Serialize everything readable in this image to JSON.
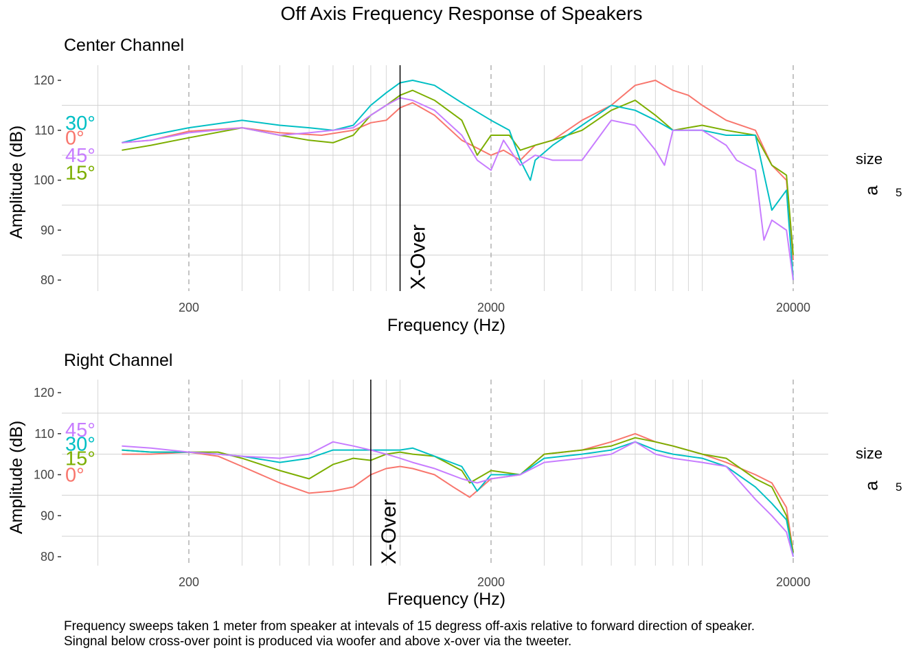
{
  "title": "Off Axis Frequency Response of Speakers",
  "caption": [
    "Frequency sweeps taken 1 meter from speaker at intevals of 15 degress off-axis relative to forward direction of speaker.",
    "Singnal below cross-over point is produced via woofer and above x-over via the tweeter."
  ],
  "legend": {
    "title": "size",
    "key": "a",
    "label": "5"
  },
  "colors": {
    "0°": "#F8766D",
    "15°": "#7CAE00",
    "30°": "#00BFC4",
    "45°": "#C77CFF"
  },
  "chart_data": [
    {
      "type": "line",
      "subtitle": "Center Channel",
      "xlabel": "Frequency (Hz)",
      "ylabel": "Amplitude (dB)",
      "x_scale": "log",
      "xlim": [
        100,
        30000
      ],
      "ylim": [
        78,
        123
      ],
      "x_ticks": [
        200,
        2000,
        20000
      ],
      "x_tick_labels": [
        "200",
        "2000",
        "20000"
      ],
      "y_ticks": [
        80,
        90,
        100,
        110,
        120
      ],
      "y_tick_labels": [
        "80",
        "90",
        "100",
        "110",
        "120"
      ],
      "grid": true,
      "crossover": {
        "x": 1000,
        "label": "X-Over"
      },
      "series_labels": [
        {
          "name": "30°",
          "y": 111.5
        },
        {
          "name": "0°",
          "y": 108.5
        },
        {
          "name": "45°",
          "y": 105
        },
        {
          "name": "15°",
          "y": 101.5
        }
      ],
      "series": [
        {
          "name": "0°",
          "color": "#F8766D",
          "points": [
            [
              120,
              107.5
            ],
            [
              150,
              108
            ],
            [
              200,
              109.8
            ],
            [
              300,
              110.5
            ],
            [
              400,
              109.5
            ],
            [
              550,
              109
            ],
            [
              700,
              110
            ],
            [
              800,
              111.5
            ],
            [
              900,
              112
            ],
            [
              1000,
              114.5
            ],
            [
              1100,
              115.5
            ],
            [
              1300,
              113
            ],
            [
              1600,
              108
            ],
            [
              2000,
              105
            ],
            [
              2200,
              106
            ],
            [
              2500,
              104
            ],
            [
              2800,
              107
            ],
            [
              3200,
              108
            ],
            [
              4000,
              112
            ],
            [
              5000,
              115
            ],
            [
              6000,
              119
            ],
            [
              7000,
              120
            ],
            [
              8000,
              118
            ],
            [
              9000,
              117
            ],
            [
              10000,
              115
            ],
            [
              12000,
              112
            ],
            [
              15000,
              110
            ],
            [
              17000,
              103
            ],
            [
              19000,
              100
            ],
            [
              20000,
              84
            ]
          ]
        },
        {
          "name": "15°",
          "color": "#7CAE00",
          "points": [
            [
              120,
              106
            ],
            [
              150,
              107
            ],
            [
              200,
              108.5
            ],
            [
              300,
              110.5
            ],
            [
              400,
              109
            ],
            [
              500,
              108
            ],
            [
              600,
              107.5
            ],
            [
              700,
              109
            ],
            [
              800,
              113
            ],
            [
              900,
              115
            ],
            [
              1000,
              117
            ],
            [
              1100,
              118
            ],
            [
              1300,
              116
            ],
            [
              1600,
              112
            ],
            [
              1800,
              105
            ],
            [
              2000,
              109
            ],
            [
              2300,
              109
            ],
            [
              2500,
              106
            ],
            [
              2800,
              107
            ],
            [
              3200,
              108
            ],
            [
              4000,
              110
            ],
            [
              5000,
              114
            ],
            [
              6000,
              116
            ],
            [
              7000,
              113
            ],
            [
              8000,
              110
            ],
            [
              10000,
              111
            ],
            [
              12000,
              110
            ],
            [
              15000,
              109
            ],
            [
              17000,
              103
            ],
            [
              19000,
              101
            ],
            [
              20000,
              85
            ]
          ]
        },
        {
          "name": "30°",
          "color": "#00BFC4",
          "points": [
            [
              120,
              107.5
            ],
            [
              150,
              109
            ],
            [
              200,
              110.5
            ],
            [
              300,
              112
            ],
            [
              400,
              111
            ],
            [
              500,
              110.5
            ],
            [
              600,
              110
            ],
            [
              700,
              111
            ],
            [
              800,
              115
            ],
            [
              900,
              117.5
            ],
            [
              1000,
              119.5
            ],
            [
              1100,
              120
            ],
            [
              1300,
              119
            ],
            [
              1600,
              115.5
            ],
            [
              2000,
              112
            ],
            [
              2300,
              110
            ],
            [
              2500,
              104
            ],
            [
              2700,
              100
            ],
            [
              2800,
              104
            ],
            [
              3200,
              107
            ],
            [
              4000,
              111
            ],
            [
              5000,
              115
            ],
            [
              6000,
              114
            ],
            [
              7000,
              112
            ],
            [
              8000,
              110
            ],
            [
              10000,
              110
            ],
            [
              12000,
              109
            ],
            [
              15000,
              109
            ],
            [
              17000,
              94
            ],
            [
              19000,
              98
            ],
            [
              20000,
              80
            ]
          ]
        },
        {
          "name": "45°",
          "color": "#C77CFF",
          "points": [
            [
              120,
              107.5
            ],
            [
              150,
              108
            ],
            [
              200,
              109.5
            ],
            [
              300,
              110.5
            ],
            [
              400,
              109
            ],
            [
              500,
              109.5
            ],
            [
              600,
              110
            ],
            [
              700,
              110.5
            ],
            [
              800,
              113
            ],
            [
              900,
              115
            ],
            [
              1000,
              116.5
            ],
            [
              1100,
              116
            ],
            [
              1300,
              114
            ],
            [
              1600,
              109
            ],
            [
              1800,
              104
            ],
            [
              2000,
              102
            ],
            [
              2200,
              108
            ],
            [
              2500,
              103
            ],
            [
              2800,
              105
            ],
            [
              3200,
              104
            ],
            [
              4000,
              104
            ],
            [
              5000,
              112
            ],
            [
              6000,
              111
            ],
            [
              7000,
              106
            ],
            [
              7500,
              103
            ],
            [
              8000,
              110
            ],
            [
              10000,
              110
            ],
            [
              12000,
              107
            ],
            [
              13000,
              104
            ],
            [
              15000,
              102
            ],
            [
              16000,
              88
            ],
            [
              17000,
              92
            ],
            [
              19000,
              90
            ],
            [
              20000,
              80
            ]
          ]
        }
      ]
    },
    {
      "type": "line",
      "subtitle": "Right Channel",
      "xlabel": "Frequency (Hz)",
      "ylabel": "Amplitude (dB)",
      "x_scale": "log",
      "xlim": [
        100,
        30000
      ],
      "ylim": [
        78,
        123
      ],
      "x_ticks": [
        200,
        2000,
        20000
      ],
      "x_tick_labels": [
        "200",
        "2000",
        "20000"
      ],
      "y_ticks": [
        80,
        90,
        100,
        110,
        120
      ],
      "y_tick_labels": [
        "80",
        "90",
        "100",
        "110",
        "120"
      ],
      "grid": true,
      "crossover": {
        "x": 800,
        "label": "X-Over"
      },
      "series_labels": [
        {
          "name": "45°",
          "y": 111
        },
        {
          "name": "30°",
          "y": 107.5
        },
        {
          "name": "15°",
          "y": 104
        },
        {
          "name": "0°",
          "y": 100
        }
      ],
      "series": [
        {
          "name": "0°",
          "color": "#F8766D",
          "points": [
            [
              120,
              105
            ],
            [
              150,
              105
            ],
            [
              200,
              105.5
            ],
            [
              250,
              104.5
            ],
            [
              300,
              102
            ],
            [
              400,
              98
            ],
            [
              500,
              95.5
            ],
            [
              600,
              96
            ],
            [
              700,
              97
            ],
            [
              800,
              100
            ],
            [
              900,
              101.5
            ],
            [
              1000,
              102
            ],
            [
              1100,
              101.5
            ],
            [
              1300,
              100
            ],
            [
              1500,
              97
            ],
            [
              1700,
              94.5
            ],
            [
              2000,
              99
            ],
            [
              2500,
              100
            ],
            [
              3000,
              105
            ],
            [
              4000,
              106
            ],
            [
              5000,
              108
            ],
            [
              6000,
              110
            ],
            [
              7000,
              108
            ],
            [
              8000,
              107
            ],
            [
              10000,
              105
            ],
            [
              12000,
              103
            ],
            [
              15000,
              100
            ],
            [
              17000,
              98
            ],
            [
              19000,
              92
            ],
            [
              20000,
              81
            ]
          ]
        },
        {
          "name": "15°",
          "color": "#7CAE00",
          "points": [
            [
              120,
              106
            ],
            [
              150,
              105.5
            ],
            [
              200,
              105.5
            ],
            [
              250,
              105.5
            ],
            [
              300,
              104
            ],
            [
              400,
              101
            ],
            [
              500,
              99
            ],
            [
              600,
              102.5
            ],
            [
              700,
              104
            ],
            [
              800,
              103.5
            ],
            [
              900,
              105
            ],
            [
              1000,
              105.5
            ],
            [
              1100,
              105
            ],
            [
              1300,
              104.5
            ],
            [
              1600,
              101
            ],
            [
              1700,
              98
            ],
            [
              2000,
              101
            ],
            [
              2500,
              100
            ],
            [
              3000,
              105
            ],
            [
              4000,
              106
            ],
            [
              5000,
              107
            ],
            [
              6000,
              109
            ],
            [
              7000,
              108
            ],
            [
              8000,
              107
            ],
            [
              10000,
              105
            ],
            [
              12000,
              104
            ],
            [
              15000,
              99
            ],
            [
              17000,
              97
            ],
            [
              19000,
              90
            ],
            [
              20000,
              81
            ]
          ]
        },
        {
          "name": "30°",
          "color": "#00BFC4",
          "points": [
            [
              120,
              106
            ],
            [
              150,
              105.5
            ],
            [
              200,
              105.5
            ],
            [
              250,
              105
            ],
            [
              300,
              104.5
            ],
            [
              400,
              103
            ],
            [
              500,
              104
            ],
            [
              600,
              106
            ],
            [
              700,
              106
            ],
            [
              800,
              106
            ],
            [
              900,
              106
            ],
            [
              1000,
              106
            ],
            [
              1100,
              106.5
            ],
            [
              1300,
              104.5
            ],
            [
              1600,
              102
            ],
            [
              1800,
              96
            ],
            [
              2000,
              100
            ],
            [
              2500,
              100
            ],
            [
              3000,
              104
            ],
            [
              4000,
              105
            ],
            [
              5000,
              106
            ],
            [
              6000,
              108
            ],
            [
              7000,
              106
            ],
            [
              8000,
              105
            ],
            [
              10000,
              104
            ],
            [
              12000,
              102
            ],
            [
              15000,
              97
            ],
            [
              17000,
              93
            ],
            [
              19000,
              89
            ],
            [
              20000,
              80
            ]
          ]
        },
        {
          "name": "45°",
          "color": "#C77CFF",
          "points": [
            [
              120,
              107
            ],
            [
              150,
              106.5
            ],
            [
              200,
              105.5
            ],
            [
              250,
              105
            ],
            [
              300,
              104.5
            ],
            [
              400,
              104
            ],
            [
              500,
              105
            ],
            [
              600,
              108
            ],
            [
              700,
              107
            ],
            [
              800,
              106
            ],
            [
              900,
              105
            ],
            [
              1000,
              104
            ],
            [
              1100,
              103
            ],
            [
              1300,
              101.5
            ],
            [
              1600,
              99
            ],
            [
              1800,
              98
            ],
            [
              2000,
              99
            ],
            [
              2500,
              100
            ],
            [
              3000,
              103
            ],
            [
              4000,
              104
            ],
            [
              5000,
              105
            ],
            [
              6000,
              108
            ],
            [
              7000,
              105
            ],
            [
              8000,
              104
            ],
            [
              10000,
              103
            ],
            [
              12000,
              102
            ],
            [
              15000,
              94
            ],
            [
              17000,
              90
            ],
            [
              19000,
              86
            ],
            [
              20000,
              80
            ]
          ]
        }
      ]
    }
  ]
}
